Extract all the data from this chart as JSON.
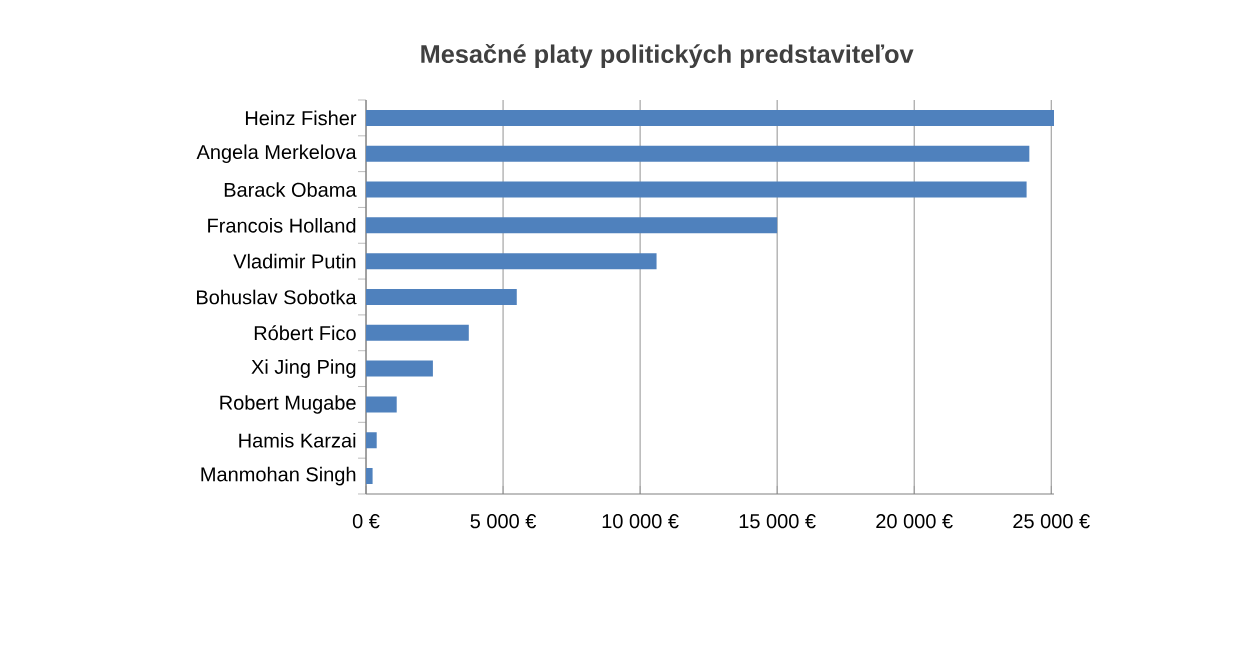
{
  "chart_data": {
    "type": "bar",
    "orientation": "horizontal",
    "title": "Mesačné platy politických predstaviteľov",
    "categories": [
      "Heinz Fisher",
      "Angela Merkelova",
      "Barack Obama",
      "Francois Holland",
      "Vladimir Putin",
      "Bohuslav Sobotka",
      "Róbert Fico",
      "Xi Jing Ping",
      "Robert Mugabe",
      "Hamis Karzai",
      "Manmohan Singh"
    ],
    "values": [
      25100,
      24200,
      24100,
      15000,
      10600,
      5500,
      3750,
      2440,
      1120,
      390,
      240
    ],
    "color": "#4f81bd",
    "xlim": [
      0,
      25100
    ],
    "xticks": [
      {
        "value": 0,
        "label": "0 €"
      },
      {
        "value": 5000,
        "label": "5 000 €"
      },
      {
        "value": 10000,
        "label": "10 000 €"
      },
      {
        "value": 15000,
        "label": "15 000 €"
      },
      {
        "value": 20000,
        "label": "20 000 €"
      },
      {
        "value": 25000,
        "label": "25 000 €"
      }
    ],
    "grid": "x"
  }
}
